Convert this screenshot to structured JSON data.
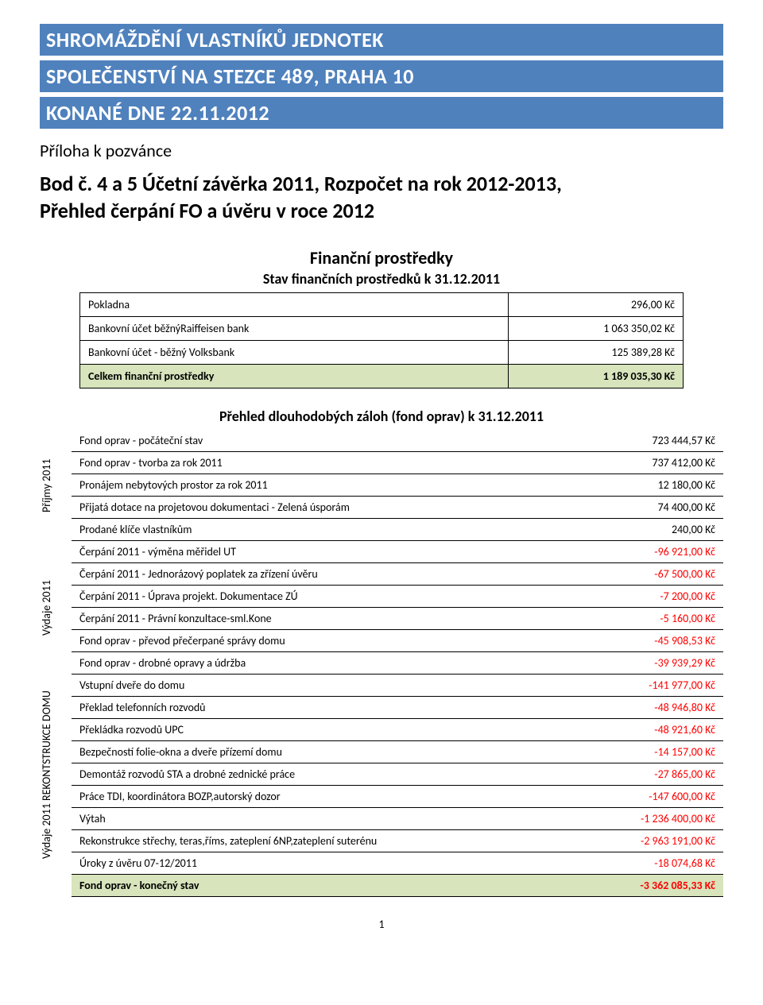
{
  "header": {
    "line1": "SHROMÁŽDĚNÍ VLASTNÍKŮ JEDNOTEK",
    "line2": "SPOLEČENSTVÍ NA STEZCE 489, PRAHA 10",
    "line3": "KONANÉ DNE 22.11.2012",
    "header_bg": "#4f81bd",
    "header_color": "#ffffff"
  },
  "subtitle": "Příloha k pozvánce",
  "bod_title": "Bod č. 4 a 5 Účetní závěrka 2011, Rozpočet na rok 2012-2013,",
  "bod_desc": "Přehled čerpání FO a úvěru v roce 2012",
  "fin": {
    "title": "Finanční prostředky",
    "subtitle": "Stav finančních prostředků k 31.12.2011",
    "total_bg": "#d7e4bc",
    "rows": [
      {
        "label": "Pokladna",
        "value": "296,00 Kč"
      },
      {
        "label": "Bankovní účet běžnýRaiffeisen bank",
        "value": "1 063 350,02 Kč"
      },
      {
        "label": "Bankovní účet - běžný Volksbank",
        "value": "125 389,28 Kč"
      }
    ],
    "total": {
      "label": "Celkem finanční prostředky",
      "value": "1 189 035,30 Kč"
    }
  },
  "zalohy": {
    "title": "Přehled dlouhodobých záloh (fond oprav) k 31.12.2011",
    "neg_color": "#ff0000",
    "final_bg": "#d7e4bc",
    "groups": [
      {
        "vlabel": "Příjmy 2011",
        "rows": [
          {
            "label": "Fond oprav - počáteční stav",
            "value": "723 444,57 Kč",
            "neg": false
          },
          {
            "label": "Fond oprav - tvorba za rok 2011",
            "value": "737 412,00 Kč",
            "neg": false
          },
          {
            "label": "Pronájem nebytových prostor za rok 2011",
            "value": "12 180,00 Kč",
            "neg": false
          },
          {
            "label": "Přijatá dotace na projetovou dokumentaci - Zelená úsporám",
            "value": "74 400,00 Kč",
            "neg": false
          },
          {
            "label": "Prodané klíče vlastníkům",
            "value": "240,00 Kč",
            "neg": false
          }
        ]
      },
      {
        "vlabel": "Výdaje 2011",
        "rows": [
          {
            "label": "Čerpání 2011 - výměna měřidel UT",
            "value": "-96 921,00 Kč",
            "neg": true
          },
          {
            "label": "Čerpání 2011 - Jednorázový poplatek za zřízení úvěru",
            "value": "-67 500,00 Kč",
            "neg": true
          },
          {
            "label": "Čerpání 2011 - Úprava projekt. Dokumentace ZÚ",
            "value": "-7 200,00 Kč",
            "neg": true
          },
          {
            "label": "Čerpání 2011 - Právní konzultace-sml.Kone",
            "value": "-5 160,00 Kč",
            "neg": true
          },
          {
            "label": "Fond oprav - převod přečerpané správy domu",
            "value": "-45 908,53 Kč",
            "neg": true
          },
          {
            "label": "Fond oprav - drobné opravy a údržba",
            "value": "-39 939,29 Kč",
            "neg": true
          }
        ]
      },
      {
        "vlabel": "Výdaje 2011 REKONTSTRUKCE DOMU",
        "rows": [
          {
            "label": "Vstupní dveře do domu",
            "value": "-141 977,00 Kč",
            "neg": true
          },
          {
            "label": "Překlad telefonních rozvodů",
            "value": "-48 946,80 Kč",
            "neg": true
          },
          {
            "label": "Překládka rozvodů UPC",
            "value": "-48 921,60 Kč",
            "neg": true
          },
          {
            "label": "Bezpečností folie-okna a dveře přízemí domu",
            "value": "-14 157,00 Kč",
            "neg": true
          },
          {
            "label": "Demontáž rozvodů STA a drobné zednické práce",
            "value": "-27 865,00 Kč",
            "neg": true
          },
          {
            "label": "Práce TDI, koordinátora BOZP,autorský dozor",
            "value": "-147 600,00 Kč",
            "neg": true
          },
          {
            "label": "Výtah",
            "value": "-1 236 400,00 Kč",
            "neg": true
          },
          {
            "label": "Rekonstrukce střechy, teras,říms, zateplení 6NP,zateplení suterénu",
            "value": "-2 963 191,00 Kč",
            "neg": true
          },
          {
            "label": "Úroky z úvěru 07-12/2011",
            "value": "-18 074,68 Kč",
            "neg": true
          }
        ]
      }
    ],
    "final": {
      "label": "Fond oprav - konečný stav",
      "value": "-3 362 085,33 Kč",
      "neg": true
    }
  },
  "page_number": "1"
}
